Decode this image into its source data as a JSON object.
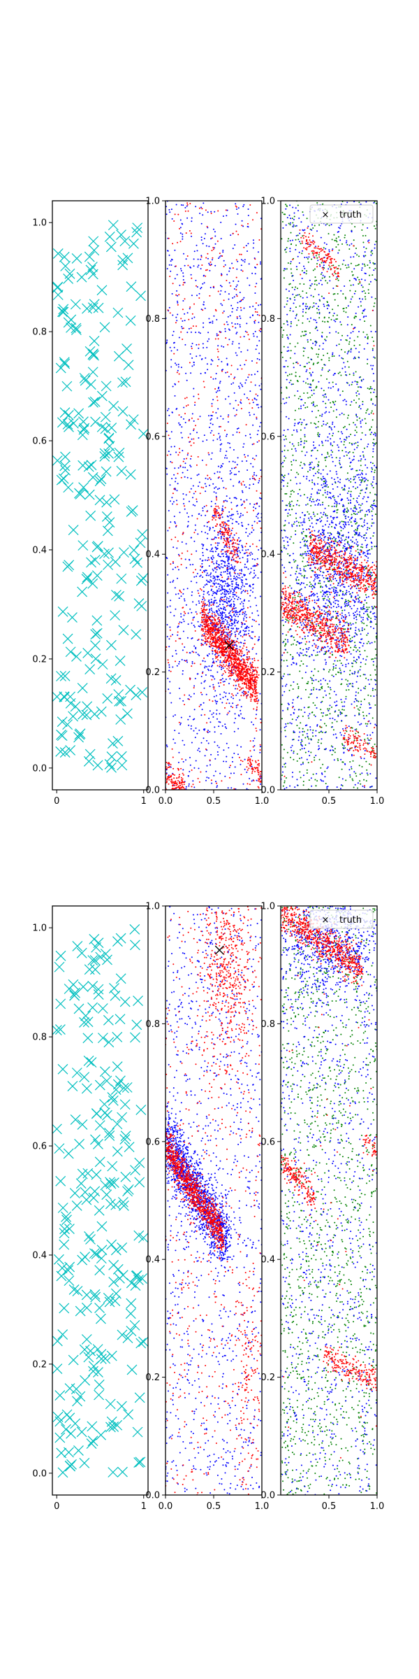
{
  "figure": {
    "description_free": true,
    "colors": {
      "samples": "#00bfbf",
      "red_points": "#ff0000",
      "blue_points": "#0000ff",
      "green_points": "#008000",
      "truth_marker": "#000000"
    },
    "legend_label": "truth",
    "legend_symbol": "×"
  },
  "chart_data": [
    {
      "id": "row1-left",
      "type": "scatter",
      "marker": "x",
      "color": "#00bfbf",
      "xlim": [
        -0.05,
        1.05
      ],
      "ylim": [
        -0.04,
        1.04
      ],
      "xticks": [
        0,
        1
      ],
      "xtick_labels": [
        "0",
        "1"
      ],
      "yticks": [
        0.0,
        0.2,
        0.4,
        0.6,
        0.8,
        1.0
      ],
      "ytick_labels": [
        "0.0",
        "0.2",
        "0.4",
        "0.6",
        "0.8",
        "1.0"
      ],
      "n_points": 220,
      "distribution": "uniform",
      "seed": 11
    },
    {
      "id": "row1-mid",
      "type": "scatter",
      "marker": "dot",
      "xlim": [
        0.0,
        1.0
      ],
      "ylim": [
        0.0,
        1.0
      ],
      "xticks": [
        0.0,
        0.5,
        1.0
      ],
      "xtick_labels": [
        "0.0",
        "0.5",
        "1.0"
      ],
      "yticks": [
        0.0,
        0.2,
        0.4,
        0.6,
        0.8,
        1.0
      ],
      "ytick_labels": [
        "0.0",
        "0.2",
        "0.4",
        "0.6",
        "0.8",
        "1.0"
      ],
      "truth": {
        "x": 0.66,
        "y": 0.245
      },
      "series": [
        {
          "name": "blue background",
          "color": "#0000ff",
          "kind": "uniform",
          "n": 1300
        },
        {
          "name": "blue cluster",
          "color": "#0000ff",
          "kind": "blob",
          "cx": 0.62,
          "cy": 0.33,
          "sx": 0.14,
          "sy": 0.07,
          "n": 800
        },
        {
          "name": "red background",
          "color": "#ff0000",
          "kind": "uniform",
          "n": 450
        },
        {
          "name": "red band",
          "color": "#ff0000",
          "kind": "band",
          "x0": 0.38,
          "y0": 0.29,
          "x1": 0.95,
          "y1": 0.17,
          "width": 0.018,
          "n": 1100
        },
        {
          "name": "red band 2",
          "color": "#ff0000",
          "kind": "band",
          "x0": 0.5,
          "y0": 0.47,
          "x1": 0.75,
          "y1": 0.4,
          "width": 0.015,
          "n": 150
        },
        {
          "name": "red corner",
          "color": "#ff0000",
          "kind": "band",
          "x0": 0.0,
          "y0": 0.03,
          "x1": 0.2,
          "y1": 0.0,
          "width": 0.012,
          "n": 120
        },
        {
          "name": "red right",
          "color": "#ff0000",
          "kind": "band",
          "x0": 0.85,
          "y0": 0.05,
          "x1": 1.0,
          "y1": 0.02,
          "width": 0.01,
          "n": 60
        }
      ],
      "seed": 21
    },
    {
      "id": "row1-right",
      "type": "scatter",
      "marker": "dot",
      "xlim": [
        0.0,
        1.0
      ],
      "ylim": [
        0.0,
        1.0
      ],
      "xticks": [
        0.5,
        1.0
      ],
      "xtick_labels": [
        "0.5",
        "1.0"
      ],
      "yticks": [
        0.0,
        0.2,
        0.4,
        0.6,
        0.8,
        1.0
      ],
      "ytick_labels": [
        "0.0",
        "0.2",
        "0.4",
        "0.6",
        "0.8",
        "1.0"
      ],
      "legend": [
        "truth"
      ],
      "series": [
        {
          "name": "green background",
          "color": "#008000",
          "kind": "uniform",
          "n": 1400
        },
        {
          "name": "blue background",
          "color": "#0000ff",
          "kind": "uniform",
          "n": 1200
        },
        {
          "name": "blue cluster",
          "color": "#0000ff",
          "kind": "blob",
          "cx": 0.6,
          "cy": 0.38,
          "sx": 0.25,
          "sy": 0.09,
          "n": 900
        },
        {
          "name": "red band a",
          "color": "#ff0000",
          "kind": "band",
          "x0": 0.0,
          "y0": 0.32,
          "x1": 0.7,
          "y1": 0.25,
          "width": 0.016,
          "n": 550
        },
        {
          "name": "red band b",
          "color": "#ff0000",
          "kind": "band",
          "x0": 0.3,
          "y0": 0.41,
          "x1": 1.0,
          "y1": 0.35,
          "width": 0.016,
          "n": 550
        },
        {
          "name": "red band c",
          "color": "#ff0000",
          "kind": "band",
          "x0": 0.2,
          "y0": 0.94,
          "x1": 0.6,
          "y1": 0.88,
          "width": 0.01,
          "n": 120
        },
        {
          "name": "red band d",
          "color": "#ff0000",
          "kind": "band",
          "x0": 0.65,
          "y0": 0.09,
          "x1": 1.0,
          "y1": 0.06,
          "width": 0.01,
          "n": 100
        },
        {
          "name": "red scatter",
          "color": "#ff0000",
          "kind": "uniform",
          "n": 30
        }
      ],
      "seed": 31
    },
    {
      "id": "row2-left",
      "type": "scatter",
      "marker": "x",
      "color": "#00bfbf",
      "xlim": [
        -0.05,
        1.05
      ],
      "ylim": [
        -0.04,
        1.04
      ],
      "xticks": [
        0,
        1
      ],
      "xtick_labels": [
        "0",
        "1"
      ],
      "yticks": [
        0.0,
        0.2,
        0.4,
        0.6,
        0.8,
        1.0
      ],
      "ytick_labels": [
        "0.0",
        "0.2",
        "0.4",
        "0.6",
        "0.8",
        "1.0"
      ],
      "n_points": 240,
      "distribution": "uniform",
      "seed": 12
    },
    {
      "id": "row2-mid",
      "type": "scatter",
      "marker": "dot",
      "xlim": [
        0.0,
        1.0
      ],
      "ylim": [
        0.0,
        1.0
      ],
      "xticks": [
        0.0,
        0.5,
        1.0
      ],
      "xtick_labels": [
        "0.0",
        "0.5",
        "1.0"
      ],
      "yticks": [
        0.0,
        0.2,
        0.4,
        0.6,
        0.8,
        1.0
      ],
      "ytick_labels": [
        "0.0",
        "0.2",
        "0.4",
        "0.6",
        "0.8",
        "1.0"
      ],
      "truth": {
        "x": 0.56,
        "y": 0.925
      },
      "series": [
        {
          "name": "blue background",
          "color": "#0000ff",
          "kind": "uniform",
          "n": 1000
        },
        {
          "name": "blue band",
          "color": "#0000ff",
          "kind": "band",
          "x0": 0.0,
          "y0": 0.6,
          "x1": 0.65,
          "y1": 0.43,
          "width": 0.03,
          "n": 1300
        },
        {
          "name": "red band",
          "color": "#ff0000",
          "kind": "band",
          "x0": 0.0,
          "y0": 0.59,
          "x1": 0.6,
          "y1": 0.44,
          "width": 0.016,
          "n": 900
        },
        {
          "name": "red upper",
          "color": "#ff0000",
          "kind": "blob",
          "cx": 0.65,
          "cy": 0.88,
          "sx": 0.13,
          "sy": 0.08,
          "n": 450
        },
        {
          "name": "red background",
          "color": "#ff0000",
          "kind": "uniform",
          "n": 500
        },
        {
          "name": "red lower",
          "color": "#ff0000",
          "kind": "blob",
          "cx": 0.85,
          "cy": 0.2,
          "sx": 0.07,
          "sy": 0.1,
          "n": 120
        }
      ],
      "seed": 22
    },
    {
      "id": "row2-right",
      "type": "scatter",
      "marker": "dot",
      "xlim": [
        0.0,
        1.0
      ],
      "ylim": [
        0.0,
        1.0
      ],
      "xticks": [
        0.5,
        1.0
      ],
      "xtick_labels": [
        "0.5",
        "1.0"
      ],
      "yticks": [
        0.0,
        0.2,
        0.4,
        0.6,
        0.8,
        1.0
      ],
      "ytick_labels": [
        "0.0",
        "0.2",
        "0.4",
        "0.6",
        "0.8",
        "1.0"
      ],
      "legend": [
        "truth"
      ],
      "series": [
        {
          "name": "green background",
          "color": "#008000",
          "kind": "uniform",
          "n": 1400
        },
        {
          "name": "blue background",
          "color": "#0000ff",
          "kind": "uniform",
          "n": 900
        },
        {
          "name": "blue top",
          "color": "#0000ff",
          "kind": "blob",
          "cx": 0.5,
          "cy": 0.95,
          "sx": 0.3,
          "sy": 0.05,
          "n": 800
        },
        {
          "name": "red band top",
          "color": "#ff0000",
          "kind": "band",
          "x0": 0.0,
          "y0": 0.99,
          "x1": 0.85,
          "y1": 0.89,
          "width": 0.016,
          "n": 650
        },
        {
          "name": "red band mid",
          "color": "#ff0000",
          "kind": "band",
          "x0": 0.0,
          "y0": 0.57,
          "x1": 0.35,
          "y1": 0.5,
          "width": 0.012,
          "n": 180
        },
        {
          "name": "red band low",
          "color": "#ff0000",
          "kind": "band",
          "x0": 0.45,
          "y0": 0.24,
          "x1": 1.0,
          "y1": 0.19,
          "width": 0.011,
          "n": 200
        },
        {
          "name": "red right",
          "color": "#ff0000",
          "kind": "band",
          "x0": 0.85,
          "y0": 0.6,
          "x1": 1.0,
          "y1": 0.59,
          "width": 0.008,
          "n": 40
        },
        {
          "name": "red scatter",
          "color": "#ff0000",
          "kind": "uniform",
          "n": 40
        }
      ],
      "seed": 32
    }
  ]
}
